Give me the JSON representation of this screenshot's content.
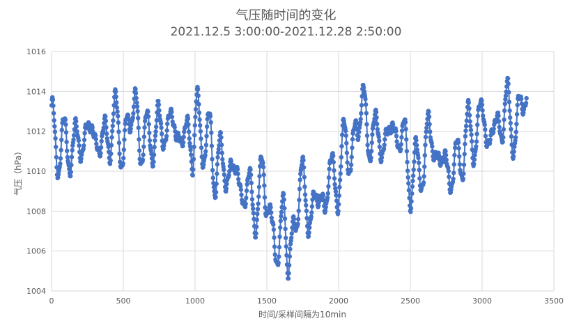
{
  "chart_data": {
    "type": "line",
    "title": "气压随时间的变化",
    "subtitle": "2021.12.5 3:00:00-2021.12.28 2:50:00",
    "xlabel": "时间/采样间隔为10min",
    "ylabel": "气压（hPa）",
    "xlim": [
      0,
      3500
    ],
    "ylim": [
      1004,
      1016
    ],
    "xticks": [
      0,
      500,
      1000,
      1500,
      2000,
      2500,
      3000,
      3500
    ],
    "yticks": [
      1004,
      1006,
      1008,
      1010,
      1012,
      1014,
      1016
    ],
    "grid": true,
    "series_color": "#4472C4",
    "marker": "circle",
    "series": [
      {
        "x": [
          0,
          40,
          80,
          130,
          180,
          220,
          270,
          310,
          360,
          400,
          440,
          490,
          530,
          580,
          620,
          660,
          710,
          750,
          800,
          840,
          880,
          930,
          980,
          1010,
          1050,
          1100,
          1140,
          1180,
          1230,
          1280,
          1320,
          1370,
          1420,
          1470,
          1500,
          1540,
          1580,
          1620,
          1650,
          1700,
          1750,
          1800,
          1850,
          1900,
          1940,
          1990,
          2040,
          2080,
          2130,
          2170,
          2220,
          2270,
          2310,
          2360,
          2400,
          2450,
          2500,
          2540,
          2590,
          2630,
          2680,
          2720,
          2770,
          2820,
          2860,
          2910,
          2950,
          3000,
          3040,
          3080,
          3130,
          3170,
          3210,
          3260,
          3310
        ],
        "y": [
          1013.3,
          1010.2,
          1012.1,
          1010.6,
          1012.0,
          1010.9,
          1012.9,
          1010.8,
          1012.2,
          1011.0,
          1013.3,
          1010.8,
          1012.2,
          1013.6,
          1010.9,
          1012.3,
          1011.1,
          1012.8,
          1011.4,
          1013.4,
          1011.0,
          1012.5,
          1010.5,
          1013.7,
          1010.9,
          1012.3,
          1009.4,
          1011.2,
          1009.3,
          1010.8,
          1008.3,
          1009.6,
          1007.6,
          1010.2,
          1008.4,
          1007.0,
          1005.8,
          1008.5,
          1005.2,
          1007.6,
          1009.9,
          1007.2,
          1009.2,
          1007.8,
          1010.6,
          1008.7,
          1011.9,
          1010.4,
          1012.3,
          1013.6,
          1011.2,
          1012.5,
          1010.6,
          1012.8,
          1011.2,
          1012.3,
          1008.9,
          1010.8,
          1009.6,
          1012.8,
          1010.1,
          1011.2,
          1009.4,
          1010.9,
          1010.3,
          1012.8,
          1010.8,
          1013.9,
          1010.6,
          1012.9,
          1011.6,
          1014.2,
          1011.4,
          1013.1,
          1014.0
        ]
      }
    ]
  }
}
